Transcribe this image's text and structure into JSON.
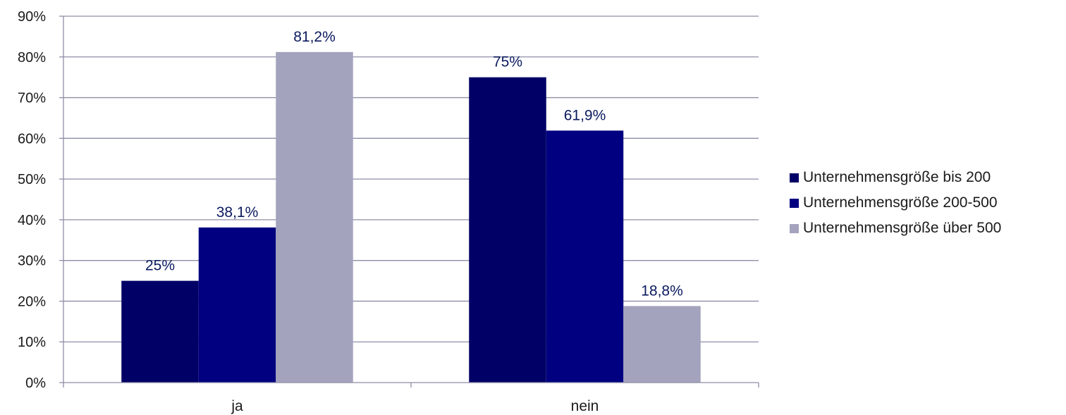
{
  "chart_data": {
    "type": "bar",
    "title": "",
    "xlabel": "",
    "ylabel": "",
    "categories": [
      "ja",
      "nein"
    ],
    "series": [
      {
        "name": "Unternehmensgröße bis 200",
        "values": [
          25,
          75
        ],
        "labels": [
          "25%",
          "75%"
        ],
        "color": "#000066"
      },
      {
        "name": "Unternehmensgröße 200-500",
        "values": [
          38.1,
          61.9
        ],
        "labels": [
          "38,1%",
          "61,9%"
        ],
        "color": "#000080"
      },
      {
        "name": "Unternehmensgröße über 500",
        "values": [
          81.2,
          18.8
        ],
        "labels": [
          "81,2%",
          "18,8%"
        ],
        "color": "#a3a3bd"
      }
    ],
    "ylim": [
      0,
      90
    ],
    "yticks": [
      0,
      10,
      20,
      30,
      40,
      50,
      60,
      70,
      80,
      90
    ],
    "ytick_labels": [
      "0%",
      "10%",
      "20%",
      "30%",
      "40%",
      "50%",
      "60%",
      "70%",
      "80%",
      "90%"
    ],
    "grid": true,
    "legend_position": "right"
  }
}
